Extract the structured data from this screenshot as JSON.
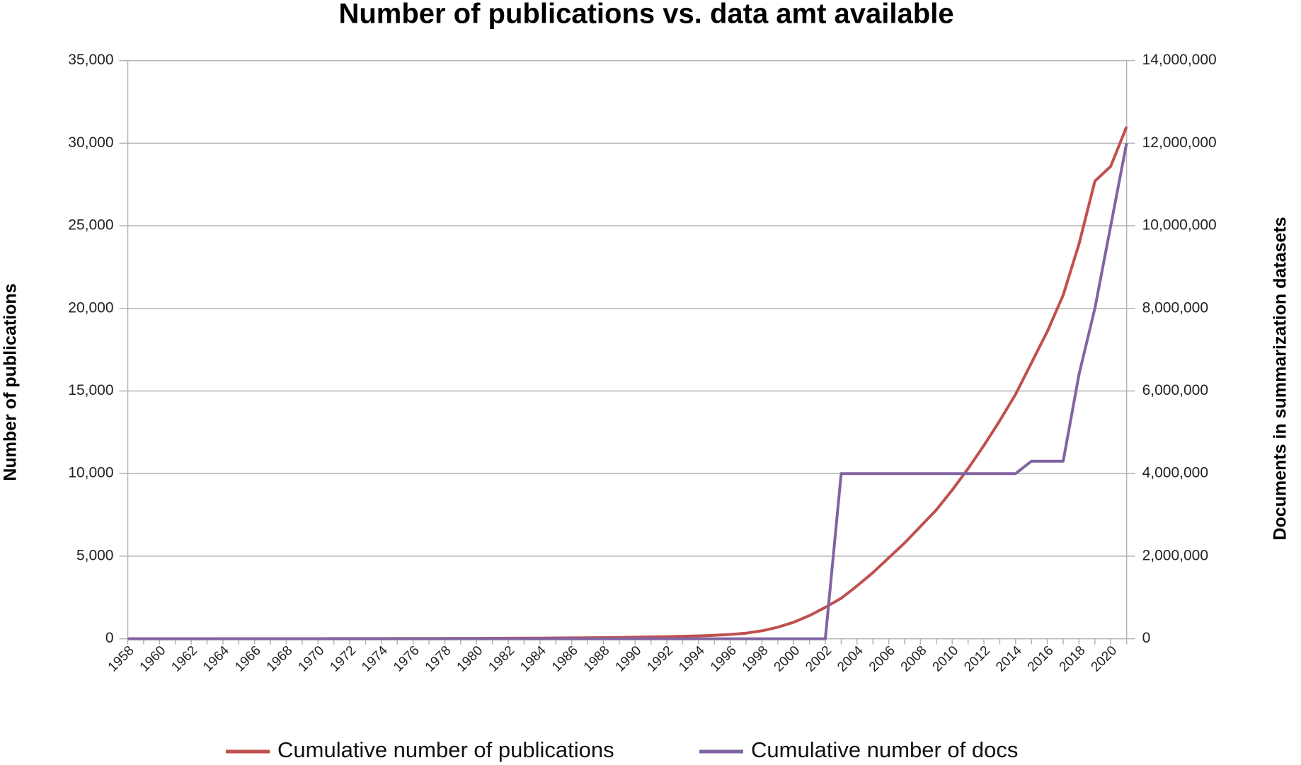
{
  "chart_data": {
    "type": "line",
    "title": "Number of publications vs. data amt available",
    "y_label": "Number of publications",
    "y2_label": "Documents in summarization datasets",
    "categories": [
      "1958",
      null,
      "1960",
      null,
      "1962",
      null,
      "1964",
      null,
      "1966",
      null,
      "1968",
      null,
      "1970",
      null,
      "1972",
      null,
      "1974",
      null,
      "1976",
      null,
      "1978",
      null,
      "1980",
      null,
      "1982",
      null,
      "1984",
      null,
      "1986",
      null,
      "1988",
      null,
      "1990",
      null,
      "1992",
      null,
      "1994",
      null,
      "1996",
      null,
      "1998",
      null,
      "2000",
      null,
      "2002",
      null,
      "2004",
      null,
      "2006",
      null,
      "2008",
      null,
      "2010",
      null,
      "2012",
      null,
      "2014",
      null,
      "2016",
      null,
      "2018",
      null,
      "2020",
      null
    ],
    "series": [
      {
        "name": "Cumulative number of publications",
        "color": "#c0504d",
        "axis": "y",
        "values": [
          1,
          1,
          1,
          2,
          2,
          2,
          3,
          3,
          4,
          4,
          5,
          5,
          6,
          7,
          8,
          9,
          10,
          12,
          14,
          16,
          18,
          20,
          23,
          26,
          30,
          34,
          39,
          45,
          52,
          60,
          70,
          80,
          95,
          110,
          130,
          150,
          175,
          210,
          260,
          340,
          480,
          700,
          1000,
          1400,
          1900,
          2450,
          3200,
          4000,
          4900,
          5800,
          6800,
          7800,
          9000,
          10300,
          11700,
          13200,
          14800,
          16700,
          18600,
          20800,
          23900,
          27700,
          28600,
          31000
        ]
      },
      {
        "name": "Cumulative number of docs",
        "color": "#8064a2",
        "axis": "y2",
        "values": [
          0,
          0,
          0,
          0,
          0,
          0,
          0,
          0,
          0,
          0,
          0,
          0,
          0,
          0,
          0,
          0,
          0,
          0,
          0,
          0,
          0,
          0,
          0,
          0,
          0,
          0,
          0,
          0,
          0,
          0,
          0,
          0,
          0,
          0,
          0,
          0,
          0,
          0,
          0,
          0,
          0,
          0,
          0,
          0,
          0,
          4000000,
          4000000,
          4000000,
          4000000,
          4000000,
          4000000,
          4000000,
          4000000,
          4000000,
          4000000,
          4000000,
          4000000,
          4300000,
          4300000,
          4300000,
          6400000,
          8000000,
          10000000,
          12000000
        ]
      }
    ],
    "ylim": [
      0,
      35000
    ],
    "yticks": [
      0,
      {
        "value": 5000,
        "label": "5,000"
      },
      {
        "value": 10000,
        "label": "10,000"
      },
      {
        "value": 15000,
        "label": "15,000"
      },
      {
        "value": 20000,
        "label": "20,000"
      },
      {
        "value": 25000,
        "label": "25,000"
      },
      {
        "value": 30000,
        "label": "30,000"
      },
      {
        "value": 35000,
        "label": "35,000"
      }
    ],
    "y2lim": [
      0,
      14000000
    ],
    "y2ticks": [
      0,
      {
        "value": 2000000,
        "label": "2,000,000"
      },
      {
        "value": 4000000,
        "label": "4,000,000"
      },
      {
        "value": 6000000,
        "label": "6,000,000"
      },
      {
        "value": 8000000,
        "label": "8,000,000"
      },
      {
        "value": 10000000,
        "label": "10,000,000"
      },
      {
        "value": 12000000,
        "label": "12,000,000"
      },
      {
        "value": 14000000,
        "label": "14,000,000"
      }
    ],
    "grid": true,
    "legend": "bottom"
  }
}
